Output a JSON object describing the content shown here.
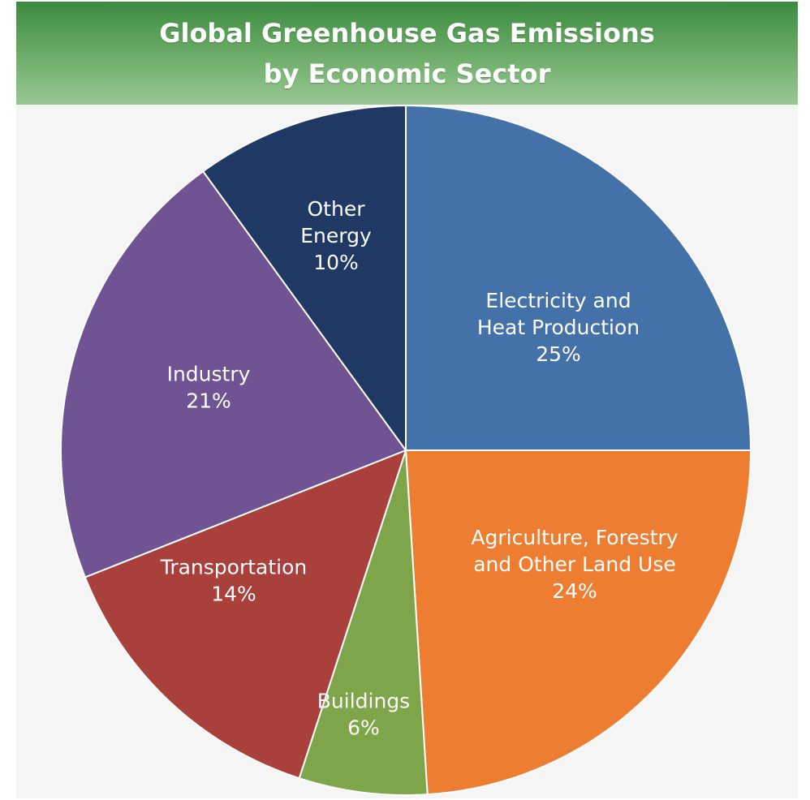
{
  "chart_data": {
    "type": "pie",
    "title_lines": [
      "Global Greenhouse Gas Emissions",
      "by Economic Sector"
    ],
    "unit": "%",
    "slices": [
      {
        "label_lines": [
          "Electricity and",
          "Heat Production"
        ],
        "value": 25,
        "value_label": "25%",
        "color": "#4472a8"
      },
      {
        "label_lines": [
          "Agriculture, Forestry",
          "and Other Land Use"
        ],
        "value": 24,
        "value_label": "24%",
        "color": "#ed7d31"
      },
      {
        "label_lines": [
          "Buildings"
        ],
        "value": 6,
        "value_label": "6%",
        "color": "#7ea549"
      },
      {
        "label_lines": [
          "Transportation"
        ],
        "value": 14,
        "value_label": "14%",
        "color": "#a9403c"
      },
      {
        "label_lines": [
          "Industry"
        ],
        "value": 21,
        "value_label": "21%",
        "color": "#6f5392"
      },
      {
        "label_lines": [
          "Other",
          "Energy"
        ],
        "value": 10,
        "value_label": "10%",
        "color": "#1f3864"
      }
    ]
  }
}
